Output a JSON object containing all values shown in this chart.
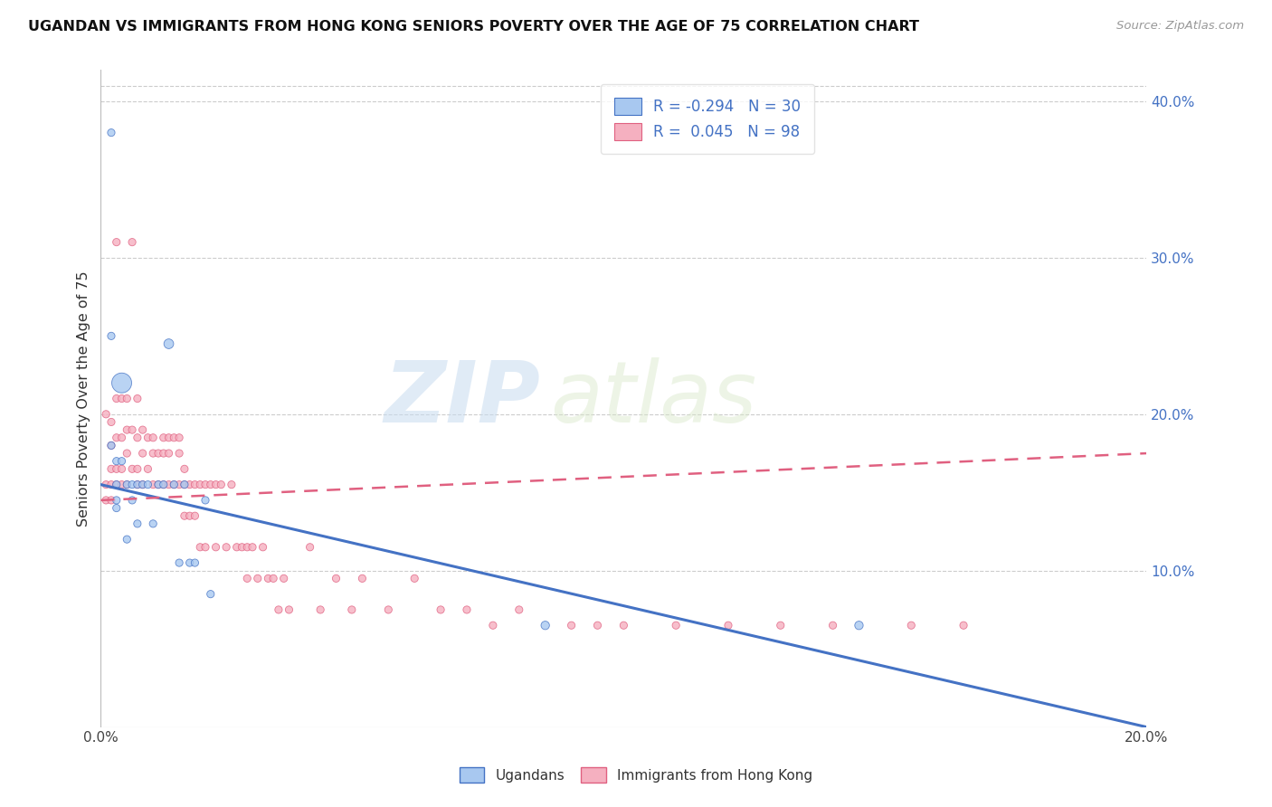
{
  "title": "UGANDAN VS IMMIGRANTS FROM HONG KONG SENIORS POVERTY OVER THE AGE OF 75 CORRELATION CHART",
  "source": "Source: ZipAtlas.com",
  "ylabel": "Seniors Poverty Over the Age of 75",
  "legend_label1": "Ugandans",
  "legend_label2": "Immigrants from Hong Kong",
  "R1": -0.294,
  "N1": 30,
  "R2": 0.045,
  "N2": 98,
  "color_blue": "#a8c8f0",
  "color_pink": "#f5b0c0",
  "color_blue_edge": "#4472c4",
  "color_pink_edge": "#e06080",
  "color_blue_line": "#4472c4",
  "color_pink_line": "#e06080",
  "watermark_zip": "ZIP",
  "watermark_atlas": "atlas",
  "xlim": [
    0.0,
    0.2
  ],
  "ylim": [
    0.0,
    0.42
  ],
  "ugandan_x": [
    0.002,
    0.002,
    0.002,
    0.003,
    0.003,
    0.003,
    0.003,
    0.004,
    0.004,
    0.005,
    0.005,
    0.006,
    0.006,
    0.007,
    0.007,
    0.008,
    0.009,
    0.01,
    0.011,
    0.012,
    0.013,
    0.014,
    0.015,
    0.016,
    0.017,
    0.018,
    0.02,
    0.021,
    0.085,
    0.145
  ],
  "ugandan_y": [
    0.38,
    0.25,
    0.18,
    0.17,
    0.155,
    0.145,
    0.14,
    0.17,
    0.22,
    0.155,
    0.12,
    0.155,
    0.145,
    0.155,
    0.13,
    0.155,
    0.155,
    0.13,
    0.155,
    0.155,
    0.245,
    0.155,
    0.105,
    0.155,
    0.105,
    0.105,
    0.145,
    0.085,
    0.065,
    0.065
  ],
  "ugandan_sizes": [
    35,
    35,
    35,
    35,
    35,
    35,
    35,
    35,
    250,
    35,
    35,
    35,
    35,
    35,
    35,
    35,
    35,
    35,
    35,
    35,
    60,
    35,
    35,
    35,
    35,
    35,
    35,
    35,
    45,
    45
  ],
  "hk_x": [
    0.001,
    0.001,
    0.001,
    0.002,
    0.002,
    0.002,
    0.002,
    0.002,
    0.003,
    0.003,
    0.003,
    0.003,
    0.003,
    0.004,
    0.004,
    0.004,
    0.004,
    0.005,
    0.005,
    0.005,
    0.005,
    0.006,
    0.006,
    0.006,
    0.007,
    0.007,
    0.007,
    0.007,
    0.008,
    0.008,
    0.008,
    0.009,
    0.009,
    0.01,
    0.01,
    0.01,
    0.011,
    0.011,
    0.012,
    0.012,
    0.012,
    0.013,
    0.013,
    0.013,
    0.014,
    0.014,
    0.015,
    0.015,
    0.015,
    0.016,
    0.016,
    0.016,
    0.017,
    0.017,
    0.018,
    0.018,
    0.019,
    0.019,
    0.02,
    0.02,
    0.021,
    0.022,
    0.022,
    0.023,
    0.024,
    0.025,
    0.026,
    0.027,
    0.028,
    0.028,
    0.029,
    0.03,
    0.031,
    0.032,
    0.033,
    0.034,
    0.035,
    0.036,
    0.04,
    0.042,
    0.045,
    0.048,
    0.05,
    0.055,
    0.06,
    0.065,
    0.07,
    0.075,
    0.08,
    0.09,
    0.095,
    0.1,
    0.11,
    0.12,
    0.13,
    0.14,
    0.155,
    0.165
  ],
  "hk_y": [
    0.2,
    0.155,
    0.145,
    0.195,
    0.18,
    0.165,
    0.155,
    0.145,
    0.31,
    0.21,
    0.185,
    0.165,
    0.155,
    0.21,
    0.185,
    0.165,
    0.155,
    0.21,
    0.19,
    0.175,
    0.155,
    0.31,
    0.19,
    0.165,
    0.21,
    0.185,
    0.165,
    0.155,
    0.19,
    0.175,
    0.155,
    0.185,
    0.165,
    0.185,
    0.175,
    0.155,
    0.175,
    0.155,
    0.185,
    0.175,
    0.155,
    0.185,
    0.175,
    0.155,
    0.185,
    0.155,
    0.185,
    0.175,
    0.155,
    0.165,
    0.155,
    0.135,
    0.155,
    0.135,
    0.155,
    0.135,
    0.155,
    0.115,
    0.155,
    0.115,
    0.155,
    0.155,
    0.115,
    0.155,
    0.115,
    0.155,
    0.115,
    0.115,
    0.115,
    0.095,
    0.115,
    0.095,
    0.115,
    0.095,
    0.095,
    0.075,
    0.095,
    0.075,
    0.115,
    0.075,
    0.095,
    0.075,
    0.095,
    0.075,
    0.095,
    0.075,
    0.075,
    0.065,
    0.075,
    0.065,
    0.065,
    0.065,
    0.065,
    0.065,
    0.065,
    0.065,
    0.065,
    0.065
  ],
  "hk_sizes": [
    35,
    35,
    35,
    35,
    35,
    35,
    35,
    35,
    35,
    35,
    35,
    35,
    35,
    35,
    35,
    35,
    35,
    35,
    35,
    35,
    35,
    35,
    35,
    35,
    35,
    35,
    35,
    35,
    35,
    35,
    35,
    35,
    35,
    35,
    35,
    35,
    35,
    35,
    35,
    35,
    35,
    35,
    35,
    35,
    35,
    35,
    35,
    35,
    35,
    35,
    35,
    35,
    35,
    35,
    35,
    35,
    35,
    35,
    35,
    35,
    35,
    35,
    35,
    35,
    35,
    35,
    35,
    35,
    35,
    35,
    35,
    35,
    35,
    35,
    35,
    35,
    35,
    35,
    35,
    35,
    35,
    35,
    35,
    35,
    35,
    35,
    35,
    35,
    35,
    35,
    35,
    35,
    35,
    35,
    35,
    35,
    35,
    35
  ],
  "blue_line_x": [
    0.0,
    0.2
  ],
  "blue_line_y": [
    0.155,
    0.0
  ],
  "pink_line_x": [
    0.0,
    0.2
  ],
  "pink_line_y": [
    0.145,
    0.175
  ]
}
